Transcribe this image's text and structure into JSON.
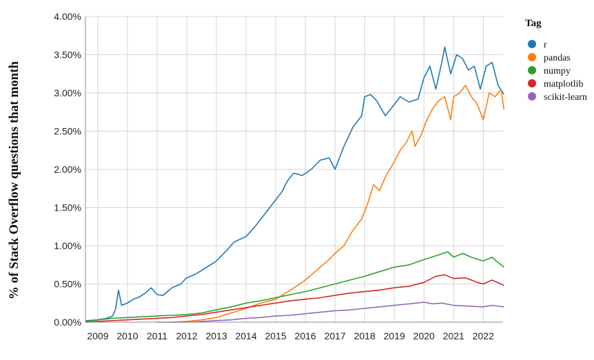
{
  "chart_data": {
    "type": "line",
    "ylabel": "% of Stack Overflow questions that month",
    "xlabel": "",
    "x_ticks": [
      "2009",
      "2010",
      "2011",
      "2012",
      "2013",
      "2014",
      "2015",
      "2016",
      "2017",
      "2018",
      "2019",
      "2020",
      "2021",
      "2022"
    ],
    "y_ticks": [
      "0.00%",
      "0.50%",
      "1.00%",
      "1.50%",
      "2.00%",
      "2.50%",
      "3.00%",
      "3.50%",
      "4.00%"
    ],
    "xlim": [
      "2008-08",
      "2022-09"
    ],
    "ylim": [
      0,
      4.0
    ],
    "y_unit": "%",
    "grid": true,
    "legend_title": "Tag",
    "legend_position": "right",
    "series": [
      {
        "name": "r",
        "color": "#1f77b4",
        "points": [
          [
            2008.6,
            0.02
          ],
          [
            2009.0,
            0.03
          ],
          [
            2009.3,
            0.05
          ],
          [
            2009.5,
            0.08
          ],
          [
            2009.6,
            0.17
          ],
          [
            2009.7,
            0.42
          ],
          [
            2009.8,
            0.22
          ],
          [
            2010.0,
            0.25
          ],
          [
            2010.2,
            0.3
          ],
          [
            2010.4,
            0.33
          ],
          [
            2010.6,
            0.38
          ],
          [
            2010.8,
            0.45
          ],
          [
            2011.0,
            0.36
          ],
          [
            2011.2,
            0.35
          ],
          [
            2011.5,
            0.45
          ],
          [
            2011.8,
            0.5
          ],
          [
            2012.0,
            0.58
          ],
          [
            2012.3,
            0.63
          ],
          [
            2012.6,
            0.7
          ],
          [
            2013.0,
            0.8
          ],
          [
            2013.3,
            0.92
          ],
          [
            2013.6,
            1.05
          ],
          [
            2014.0,
            1.12
          ],
          [
            2014.3,
            1.25
          ],
          [
            2014.6,
            1.4
          ],
          [
            2014.9,
            1.55
          ],
          [
            2015.2,
            1.7
          ],
          [
            2015.4,
            1.85
          ],
          [
            2015.6,
            1.95
          ],
          [
            2015.9,
            1.92
          ],
          [
            2016.2,
            2.0
          ],
          [
            2016.5,
            2.12
          ],
          [
            2016.8,
            2.15
          ],
          [
            2017.0,
            2.0
          ],
          [
            2017.3,
            2.3
          ],
          [
            2017.6,
            2.55
          ],
          [
            2017.9,
            2.7
          ],
          [
            2018.0,
            2.95
          ],
          [
            2018.2,
            2.98
          ],
          [
            2018.4,
            2.9
          ],
          [
            2018.7,
            2.7
          ],
          [
            2019.0,
            2.85
          ],
          [
            2019.2,
            2.95
          ],
          [
            2019.5,
            2.88
          ],
          [
            2019.8,
            2.92
          ],
          [
            2020.0,
            3.2
          ],
          [
            2020.2,
            3.35
          ],
          [
            2020.4,
            3.05
          ],
          [
            2020.6,
            3.4
          ],
          [
            2020.7,
            3.6
          ],
          [
            2020.9,
            3.25
          ],
          [
            2021.1,
            3.5
          ],
          [
            2021.3,
            3.45
          ],
          [
            2021.5,
            3.3
          ],
          [
            2021.7,
            3.35
          ],
          [
            2021.9,
            3.05
          ],
          [
            2022.1,
            3.35
          ],
          [
            2022.3,
            3.4
          ],
          [
            2022.5,
            3.1
          ],
          [
            2022.7,
            2.98
          ]
        ]
      },
      {
        "name": "pandas",
        "color": "#ff7f0e",
        "points": [
          [
            2011.5,
            0.0
          ],
          [
            2012.0,
            0.01
          ],
          [
            2012.5,
            0.03
          ],
          [
            2013.0,
            0.06
          ],
          [
            2013.5,
            0.12
          ],
          [
            2014.0,
            0.18
          ],
          [
            2014.5,
            0.25
          ],
          [
            2015.0,
            0.3
          ],
          [
            2015.5,
            0.42
          ],
          [
            2016.0,
            0.55
          ],
          [
            2016.5,
            0.72
          ],
          [
            2016.8,
            0.82
          ],
          [
            2017.0,
            0.9
          ],
          [
            2017.3,
            1.0
          ],
          [
            2017.6,
            1.2
          ],
          [
            2017.9,
            1.35
          ],
          [
            2018.1,
            1.55
          ],
          [
            2018.3,
            1.8
          ],
          [
            2018.5,
            1.72
          ],
          [
            2018.7,
            1.9
          ],
          [
            2019.0,
            2.1
          ],
          [
            2019.2,
            2.25
          ],
          [
            2019.4,
            2.35
          ],
          [
            2019.6,
            2.5
          ],
          [
            2019.7,
            2.3
          ],
          [
            2019.9,
            2.45
          ],
          [
            2020.1,
            2.65
          ],
          [
            2020.3,
            2.8
          ],
          [
            2020.5,
            2.9
          ],
          [
            2020.7,
            2.95
          ],
          [
            2020.9,
            2.65
          ],
          [
            2021.0,
            2.95
          ],
          [
            2021.2,
            3.0
          ],
          [
            2021.4,
            3.1
          ],
          [
            2021.6,
            2.95
          ],
          [
            2021.8,
            2.85
          ],
          [
            2022.0,
            2.65
          ],
          [
            2022.2,
            3.0
          ],
          [
            2022.4,
            2.95
          ],
          [
            2022.6,
            3.05
          ],
          [
            2022.7,
            2.78
          ]
        ]
      },
      {
        "name": "numpy",
        "color": "#2ca02c",
        "points": [
          [
            2008.6,
            0.01
          ],
          [
            2009.0,
            0.03
          ],
          [
            2009.5,
            0.05
          ],
          [
            2010.0,
            0.06
          ],
          [
            2010.5,
            0.07
          ],
          [
            2011.0,
            0.08
          ],
          [
            2011.5,
            0.09
          ],
          [
            2012.0,
            0.1
          ],
          [
            2012.5,
            0.12
          ],
          [
            2013.0,
            0.16
          ],
          [
            2013.5,
            0.2
          ],
          [
            2014.0,
            0.25
          ],
          [
            2014.5,
            0.28
          ],
          [
            2015.0,
            0.32
          ],
          [
            2015.5,
            0.36
          ],
          [
            2016.0,
            0.4
          ],
          [
            2016.5,
            0.45
          ],
          [
            2017.0,
            0.5
          ],
          [
            2017.5,
            0.55
          ],
          [
            2018.0,
            0.6
          ],
          [
            2018.5,
            0.66
          ],
          [
            2019.0,
            0.72
          ],
          [
            2019.5,
            0.75
          ],
          [
            2020.0,
            0.82
          ],
          [
            2020.5,
            0.88
          ],
          [
            2020.8,
            0.92
          ],
          [
            2021.0,
            0.85
          ],
          [
            2021.3,
            0.9
          ],
          [
            2021.6,
            0.85
          ],
          [
            2022.0,
            0.8
          ],
          [
            2022.3,
            0.85
          ],
          [
            2022.5,
            0.78
          ],
          [
            2022.7,
            0.72
          ]
        ]
      },
      {
        "name": "matplotlib",
        "color": "#d62728",
        "points": [
          [
            2008.6,
            0.0
          ],
          [
            2009.0,
            0.01
          ],
          [
            2009.5,
            0.02
          ],
          [
            2010.0,
            0.03
          ],
          [
            2010.5,
            0.04
          ],
          [
            2011.0,
            0.05
          ],
          [
            2011.5,
            0.06
          ],
          [
            2012.0,
            0.08
          ],
          [
            2012.5,
            0.1
          ],
          [
            2013.0,
            0.13
          ],
          [
            2013.5,
            0.16
          ],
          [
            2014.0,
            0.19
          ],
          [
            2014.5,
            0.22
          ],
          [
            2015.0,
            0.25
          ],
          [
            2015.5,
            0.28
          ],
          [
            2016.0,
            0.3
          ],
          [
            2016.5,
            0.32
          ],
          [
            2017.0,
            0.35
          ],
          [
            2017.5,
            0.38
          ],
          [
            2018.0,
            0.4
          ],
          [
            2018.5,
            0.42
          ],
          [
            2019.0,
            0.45
          ],
          [
            2019.5,
            0.47
          ],
          [
            2020.0,
            0.52
          ],
          [
            2020.4,
            0.6
          ],
          [
            2020.7,
            0.62
          ],
          [
            2021.0,
            0.57
          ],
          [
            2021.4,
            0.58
          ],
          [
            2021.8,
            0.52
          ],
          [
            2022.0,
            0.5
          ],
          [
            2022.3,
            0.55
          ],
          [
            2022.7,
            0.48
          ]
        ]
      },
      {
        "name": "scikit-learn",
        "color": "#9467bd",
        "points": [
          [
            2011.0,
            0.0
          ],
          [
            2011.5,
            0.0
          ],
          [
            2012.0,
            0.0
          ],
          [
            2012.5,
            0.01
          ],
          [
            2013.0,
            0.02
          ],
          [
            2013.5,
            0.03
          ],
          [
            2014.0,
            0.05
          ],
          [
            2014.5,
            0.06
          ],
          [
            2015.0,
            0.08
          ],
          [
            2015.5,
            0.09
          ],
          [
            2016.0,
            0.11
          ],
          [
            2016.5,
            0.13
          ],
          [
            2017.0,
            0.15
          ],
          [
            2017.5,
            0.16
          ],
          [
            2018.0,
            0.18
          ],
          [
            2018.5,
            0.2
          ],
          [
            2019.0,
            0.22
          ],
          [
            2019.5,
            0.24
          ],
          [
            2020.0,
            0.26
          ],
          [
            2020.3,
            0.24
          ],
          [
            2020.6,
            0.25
          ],
          [
            2021.0,
            0.22
          ],
          [
            2021.5,
            0.21
          ],
          [
            2022.0,
            0.2
          ],
          [
            2022.3,
            0.22
          ],
          [
            2022.7,
            0.2
          ]
        ]
      }
    ]
  }
}
